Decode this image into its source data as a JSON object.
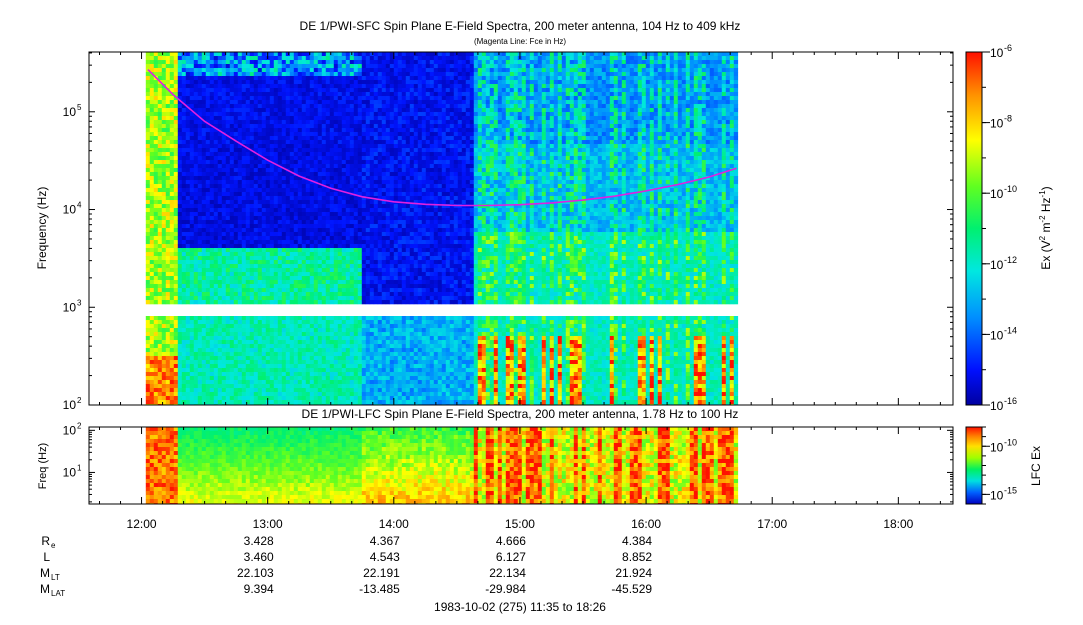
{
  "chart_data": [
    {
      "type": "heatmap",
      "title": "DE 1/PWI-SFC  Spin Plane E-Field Spectra, 200 meter antenna, 104 Hz to 409 kHz",
      "subtitle": "(Magenta Line: Fce in Hz)",
      "ylabel": "Frequency (Hz)",
      "yscale": "log",
      "ylim": [
        100,
        409000
      ],
      "y_ticks": [
        {
          "value": 100,
          "label": "10",
          "exp": "2"
        },
        {
          "value": 1000,
          "label": "10",
          "exp": "3"
        },
        {
          "value": 10000,
          "label": "10",
          "exp": "4"
        },
        {
          "value": 100000,
          "label": "10",
          "exp": "5"
        }
      ],
      "colorbar": {
        "label_parts": {
          "a": "Ex (V",
          "b": "2",
          "c": " m",
          "d": "-2",
          "e": " Hz",
          "f": "-1",
          "g": ")"
        },
        "scale": "log",
        "range": [
          1e-16,
          1e-06
        ],
        "ticks": [
          {
            "value": 1e-16,
            "label": "10",
            "exp": "-16"
          },
          {
            "value": 1e-14,
            "label": "10",
            "exp": "-14"
          },
          {
            "value": 1e-12,
            "label": "10",
            "exp": "-12"
          },
          {
            "value": 1e-10,
            "label": "10",
            "exp": "-10"
          },
          {
            "value": 1e-08,
            "label": "10",
            "exp": "-8"
          },
          {
            "value": 1e-06,
            "label": "10",
            "exp": "-6"
          }
        ]
      },
      "data_coverage": {
        "start": "12:02",
        "end": "16:43"
      },
      "fce_line": {
        "color": "#e020e0",
        "points": [
          [
            "12:03",
            270000
          ],
          [
            "12:15",
            150000
          ],
          [
            "12:30",
            80000
          ],
          [
            "12:45",
            50000
          ],
          [
            "13:00",
            32000
          ],
          [
            "13:15",
            22000
          ],
          [
            "13:30",
            16500
          ],
          [
            "13:45",
            13500
          ],
          [
            "14:00",
            12000
          ],
          [
            "14:15",
            11300
          ],
          [
            "14:30",
            11000
          ],
          [
            "14:45",
            11000
          ],
          [
            "15:00",
            11200
          ],
          [
            "15:15",
            11700
          ],
          [
            "15:30",
            12500
          ],
          [
            "15:45",
            13700
          ],
          [
            "16:00",
            15500
          ],
          [
            "16:15",
            18000
          ],
          [
            "16:30",
            21500
          ],
          [
            "16:43",
            26500
          ]
        ]
      }
    },
    {
      "type": "heatmap",
      "title": "DE 1/PWI-LFC  Spin Plane E-Field Spectra, 200 meter antenna, 1.78 Hz to 100 Hz",
      "ylabel": "Freq (Hz)",
      "yscale": "log",
      "ylim": [
        1.78,
        120
      ],
      "y_ticks": [
        {
          "value": 10,
          "label": "10",
          "exp": "1"
        },
        {
          "value": 100,
          "label": "10",
          "exp": "2"
        }
      ],
      "colorbar": {
        "label": "LFC Ex",
        "scale": "log",
        "range": [
          1e-16,
          1e-08
        ],
        "ticks": [
          {
            "value": 1e-15,
            "label": "10",
            "exp": "-15"
          },
          {
            "value": 1e-10,
            "label": "10",
            "exp": "-10"
          }
        ]
      }
    }
  ],
  "x_axis": {
    "range": [
      "11:35",
      "18:26"
    ],
    "ticks": [
      "12:00",
      "13:00",
      "14:00",
      "15:00",
      "16:00",
      "17:00",
      "18:00"
    ]
  },
  "ephemeris": {
    "rows": [
      {
        "key": "re",
        "label": "R",
        "sub": "e",
        "values": [
          "3.428",
          "4.367",
          "4.666",
          "4.384"
        ]
      },
      {
        "key": "l",
        "label": "L",
        "sub": "",
        "values": [
          "3.460",
          "4.543",
          "6.127",
          "8.852"
        ]
      },
      {
        "key": "mlt",
        "label": "M",
        "sub": "LT",
        "values": [
          "22.103",
          "22.191",
          "22.134",
          "21.924"
        ]
      },
      {
        "key": "mlat",
        "label": "M",
        "sub": "LAT",
        "values": [
          "9.394",
          "-13.485",
          "-29.984",
          "-45.529"
        ]
      }
    ],
    "times": [
      "13:00",
      "14:00",
      "15:00",
      "16:00"
    ]
  },
  "footer": "1983-10-02 (275) 11:35 to 18:26"
}
